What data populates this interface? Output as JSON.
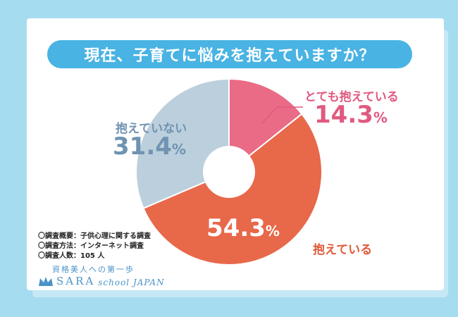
{
  "title": "現在、子育てに悩みを抱えていますか？",
  "chart_data": {
    "type": "pie",
    "donut": true,
    "slices": [
      {
        "label": "とても抱えている",
        "value": 14.3,
        "pct_text": "14.3",
        "unit": "%",
        "color": "#e96b86"
      },
      {
        "label": "抱えている",
        "value": 54.3,
        "pct_text": "54.3",
        "unit": "%",
        "color": "#e8684a"
      },
      {
        "label": "抱えていない",
        "value": 31.4,
        "pct_text": "31.4",
        "unit": "%",
        "color": "#bccfdd"
      }
    ],
    "label_colors": {
      "strong": "#e05a80",
      "yes": "#e05a3a",
      "no": "#6f93b0"
    }
  },
  "notes": [
    "〇調査概要：子供心理に関する調査",
    "〇調査方法：インターネット調査",
    "〇調査人数：105 人"
  ],
  "logo": {
    "tagline": "資格美人への第一歩",
    "brand": "SARA",
    "sub": "school JAPAN"
  },
  "colors": {
    "background": "#a6dcf0",
    "title_bar": "#49b3e3",
    "logo": "#4a93c8"
  }
}
